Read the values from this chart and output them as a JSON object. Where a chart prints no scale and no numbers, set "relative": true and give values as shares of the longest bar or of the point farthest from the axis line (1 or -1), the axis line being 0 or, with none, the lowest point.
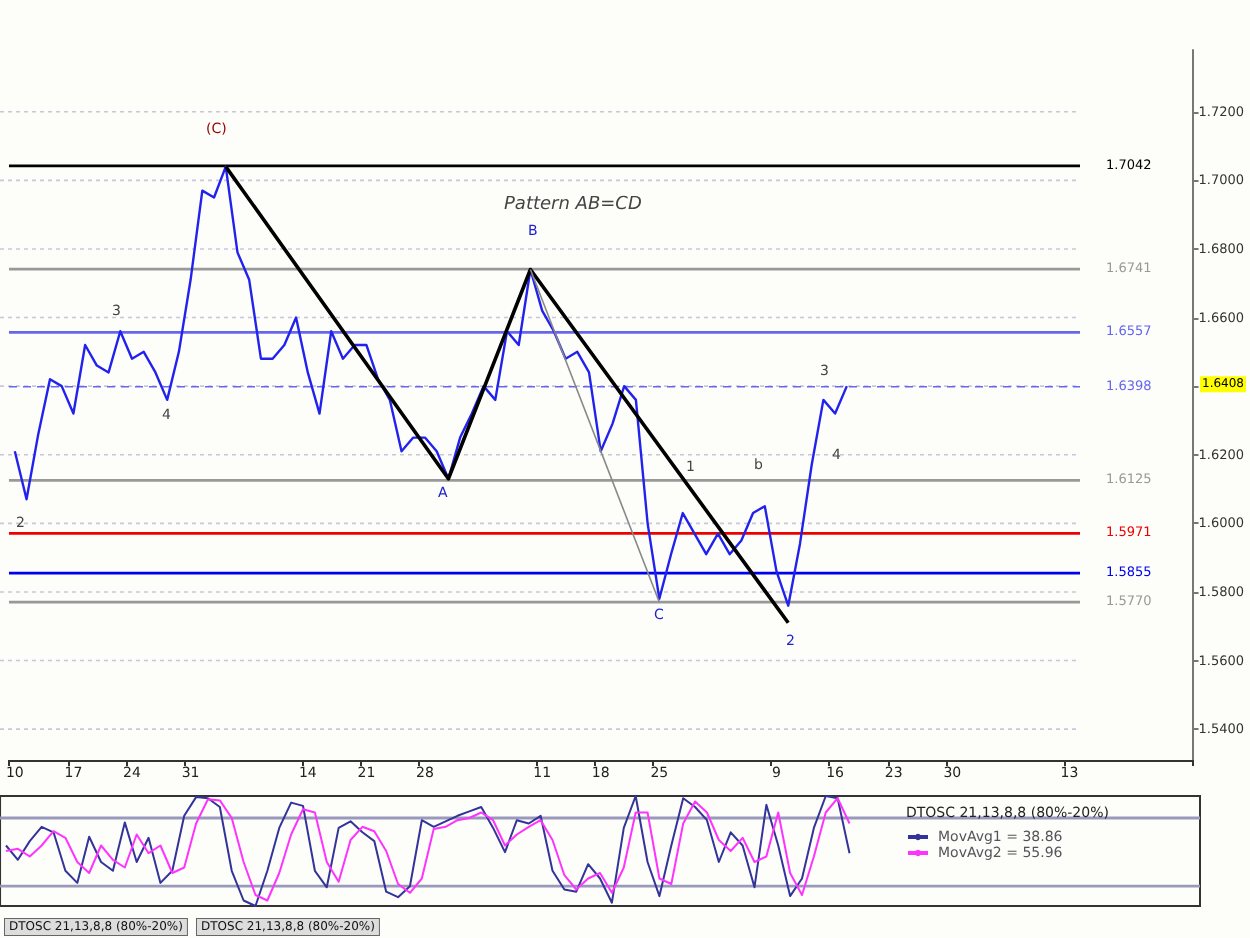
{
  "chart_data": [
    {
      "type": "line",
      "categories": [
        "10",
        null,
        null,
        null,
        null,
        "17",
        null,
        null,
        null,
        null,
        "24",
        null,
        null,
        null,
        null,
        "31",
        null,
        null,
        null,
        null,
        null,
        null,
        null,
        null,
        null,
        "14",
        null,
        null,
        null,
        null,
        "21",
        null,
        null,
        null,
        null,
        "28",
        null,
        null,
        null,
        null,
        null,
        null,
        null,
        null,
        null,
        "11",
        null,
        null,
        null,
        null,
        "18",
        null,
        null,
        null,
        null,
        "25",
        null,
        null,
        null,
        null,
        null,
        null,
        null,
        null,
        null,
        "9",
        null,
        null,
        null,
        null,
        "16",
        null,
        null,
        null,
        null,
        "23",
        null,
        null,
        null,
        null,
        "30",
        null,
        null,
        null,
        null,
        null,
        null,
        null,
        null,
        null,
        "13",
        null,
        null,
        null,
        null,
        null,
        null,
        null,
        null,
        null,
        null
      ],
      "series": [
        {
          "color": "#2222ee",
          "values": [
            1.621,
            1.607,
            1.626,
            1.642,
            1.64,
            1.632,
            1.652,
            1.646,
            1.644,
            1.656,
            1.648,
            1.65,
            1.644,
            1.636,
            1.65,
            1.671,
            1.697,
            1.695,
            1.704,
            1.679,
            1.671,
            1.648,
            1.648,
            1.652,
            1.66,
            1.644,
            1.632,
            1.656,
            1.648,
            1.652,
            1.652,
            1.642,
            1.636,
            1.621,
            1.625,
            1.625,
            1.621,
            1.613,
            1.625,
            1.632,
            1.64,
            1.636,
            1.656,
            1.652,
            1.674,
            1.662,
            1.656,
            1.648,
            1.65,
            1.644,
            1.621,
            1.629,
            1.64,
            1.636,
            1.6,
            1.578,
            1.591,
            1.603,
            1.597,
            1.591,
            1.597,
            1.591,
            1.595,
            1.603,
            1.605,
            1.586,
            1.576,
            1.594,
            1.617,
            1.636,
            1.632,
            1.64,
            null,
            null,
            null,
            null,
            null,
            null,
            null,
            null,
            null,
            null,
            null,
            null,
            null,
            null,
            null,
            null,
            null,
            null,
            null,
            null,
            null,
            null,
            null,
            null,
            null,
            null,
            null,
            null,
            null
          ]
        },
        {
          "color": "#000000",
          "values": [
            null,
            null,
            null,
            null,
            null,
            null,
            null,
            null,
            null,
            null,
            null,
            null,
            null,
            null,
            null,
            null,
            null,
            null,
            1.704,
            null,
            null,
            null,
            null,
            null,
            null,
            null,
            null,
            null,
            null,
            null,
            null,
            null,
            null,
            null,
            null,
            null,
            null,
            1.613,
            null,
            null,
            null,
            null,
            null,
            null,
            1.674,
            null,
            null,
            null,
            null,
            null,
            null,
            null,
            null,
            null,
            null,
            null,
            null,
            null,
            null,
            null,
            null,
            null,
            null,
            null,
            null,
            null,
            1.571,
            null,
            null,
            null,
            null,
            null,
            null,
            null,
            null,
            null,
            null,
            null,
            null,
            null,
            null,
            null,
            null,
            null,
            null,
            null,
            null,
            null,
            null,
            null,
            null,
            null,
            null,
            null,
            null,
            null,
            null,
            null,
            null,
            null,
            null
          ]
        },
        {
          "color": "#888888",
          "values": [
            null,
            null,
            null,
            null,
            null,
            null,
            null,
            null,
            null,
            null,
            null,
            null,
            null,
            null,
            null,
            null,
            null,
            null,
            null,
            null,
            null,
            null,
            null,
            null,
            null,
            null,
            null,
            null,
            null,
            null,
            null,
            null,
            null,
            null,
            null,
            null,
            null,
            null,
            null,
            null,
            null,
            null,
            null,
            null,
            1.674,
            null,
            null,
            null,
            null,
            null,
            null,
            null,
            null,
            null,
            null,
            1.577,
            null,
            null,
            null,
            null,
            null,
            null,
            null,
            null,
            null,
            null,
            null,
            null,
            null,
            null,
            null,
            null,
            null,
            null,
            null,
            null,
            null,
            null,
            null,
            null,
            null,
            null,
            null,
            null,
            null,
            null,
            null,
            null,
            null,
            null,
            null,
            null,
            null,
            null,
            null,
            null,
            null,
            null,
            null,
            null,
            null
          ]
        }
      ],
      "ylim": [
        1.531,
        1.738
      ],
      "yticks": [
        {
          "value": 1.54,
          "label": "1.5400"
        },
        {
          "value": 1.56,
          "label": "1.5600"
        },
        {
          "value": 1.58,
          "label": "1.5800"
        },
        {
          "value": 1.6,
          "label": "1.6000"
        },
        {
          "value": 1.62,
          "label": "1.6200"
        },
        {
          "value": 1.64,
          "label": null
        },
        {
          "value": 1.66,
          "label": "1.6600"
        },
        {
          "value": 1.68,
          "label": "1.6800"
        },
        {
          "value": 1.7,
          "label": "1.7000"
        },
        {
          "value": 1.72,
          "label": "1.7200"
        }
      ],
      "grid": "y",
      "marker": "none",
      "ref_lines": [
        {
          "axis": "y",
          "value": 1.7042,
          "label": "1.7042",
          "color": "#000000",
          "line_style": "solid"
        },
        {
          "axis": "y",
          "value": 1.6741,
          "label": "1.6741",
          "color": "#999999",
          "line_style": "solid"
        },
        {
          "axis": "y",
          "value": 1.6557,
          "label": "1.6557",
          "color": "#6666ee",
          "line_style": "solid"
        },
        {
          "axis": "y",
          "value": 1.6398,
          "label": "1.6398",
          "color": "#6666ee",
          "line_style": "dashed"
        },
        {
          "axis": "y",
          "value": 1.6125,
          "label": "1.6125",
          "color": "#999999",
          "line_style": "solid"
        },
        {
          "axis": "y",
          "value": 1.5971,
          "label": "1.5971",
          "color": "#ee0000",
          "line_style": "solid"
        },
        {
          "axis": "y",
          "value": 1.5855,
          "label": "1.5855",
          "color": "#0000ee",
          "line_style": "solid"
        },
        {
          "axis": "y",
          "value": 1.577,
          "label": "1.5770",
          "color": "#999999",
          "line_style": "solid"
        }
      ],
      "annotations": [
        "2",
        "3",
        "4",
        "(C)",
        "A",
        "B",
        "C",
        "1",
        "b",
        "2",
        "3",
        "4",
        "Pattern AB=CD",
        "1.6408"
      ]
    },
    {
      "type": "line",
      "title": "DTOSC 21,13,8,8 (80%-20%)",
      "relative": true,
      "categories": [
        null,
        null,
        null,
        null,
        null,
        null,
        null,
        null,
        null,
        null,
        null,
        null,
        null,
        null,
        null,
        null,
        null,
        null,
        null,
        null,
        null,
        null,
        null,
        null,
        null,
        null,
        null,
        null,
        null,
        null,
        null,
        null,
        null,
        null,
        null,
        null,
        null,
        null,
        null,
        null,
        null,
        null,
        null,
        null,
        null,
        null,
        null,
        null,
        null,
        null,
        null,
        null,
        null,
        null,
        null,
        null,
        null,
        null,
        null,
        null,
        null,
        null,
        null,
        null,
        null,
        null,
        null,
        null,
        null,
        null,
        null,
        null,
        null,
        null,
        null,
        null,
        null,
        null,
        null,
        null,
        null,
        null,
        null,
        null,
        null,
        null,
        null,
        null,
        null,
        null,
        null,
        null,
        null,
        null,
        null,
        null,
        null,
        null,
        null,
        null,
        null
      ],
      "legend": "top right",
      "series": [
        {
          "name": "MovAvg1 = 38.86",
          "color": "#333399",
          "values": [
            0.55,
            0.42,
            0.59,
            0.72,
            0.67,
            0.32,
            0.21,
            0.63,
            0.4,
            0.32,
            0.76,
            0.4,
            0.62,
            0.21,
            0.32,
            0.82,
            0.99,
            0.98,
            0.9,
            0.32,
            0.05,
            0,
            0.32,
            0.71,
            0.94,
            0.91,
            0.32,
            0.17,
            0.71,
            0.77,
            0.67,
            0.59,
            0.13,
            0.08,
            0.18,
            0.78,
            0.72,
            0.77,
            0.82,
            0.86,
            0.9,
            0.71,
            0.49,
            0.78,
            0.75,
            0.82,
            0.32,
            0.15,
            0.13,
            0.38,
            0.25,
            0.03,
            0.71,
            1,
            0.4,
            0.09,
            0.55,
            0.98,
            0.9,
            0.78,
            0.4,
            0.67,
            0.55,
            0.17,
            0.92,
            0.55,
            0.09,
            0.25,
            0.71,
            1,
            0.98,
            0.48,
            null,
            null,
            null,
            null,
            null,
            null,
            null,
            null,
            null,
            null,
            null,
            null,
            null,
            null,
            null,
            null,
            null,
            null,
            null,
            null,
            null,
            null,
            null,
            null,
            null,
            null,
            null,
            null,
            null
          ]
        },
        {
          "name": "MovAvg2 = 55.96",
          "color": "#ff33ff",
          "values": [
            0.5,
            0.52,
            0.45,
            0.55,
            0.68,
            0.62,
            0.4,
            0.3,
            0.55,
            0.42,
            0.35,
            0.65,
            0.48,
            0.55,
            0.3,
            0.35,
            0.75,
            0.97,
            0.96,
            0.8,
            0.4,
            0.1,
            0.05,
            0.3,
            0.65,
            0.88,
            0.85,
            0.4,
            0.22,
            0.6,
            0.72,
            0.68,
            0.5,
            0.2,
            0.12,
            0.25,
            0.7,
            0.72,
            0.78,
            0.8,
            0.85,
            0.78,
            0.55,
            0.65,
            0.72,
            0.78,
            0.6,
            0.28,
            0.15,
            0.25,
            0.3,
            0.12,
            0.35,
            0.85,
            0.85,
            0.25,
            0.2,
            0.75,
            0.95,
            0.85,
            0.6,
            0.5,
            0.62,
            0.4,
            0.45,
            0.85,
            0.3,
            0.1,
            0.45,
            0.85,
            0.98,
            0.75,
            null,
            null,
            null,
            null,
            null,
            null,
            null,
            null,
            null,
            null,
            null,
            null,
            null,
            null,
            null,
            null,
            null,
            null,
            null,
            null,
            null,
            null,
            null,
            null,
            null,
            null,
            null,
            null,
            null
          ]
        }
      ],
      "ref_lines": [
        {
          "axis": "y",
          "value": 0.8,
          "color": "#9999bb"
        },
        {
          "axis": "y",
          "value": 0.18,
          "color": "#9999bb"
        }
      ],
      "annotations": [
        "DTOSC 21,13,8,8 (80%-20%)",
        "DTOSC 21,13,8,8 (80%-20%)"
      ]
    }
  ]
}
